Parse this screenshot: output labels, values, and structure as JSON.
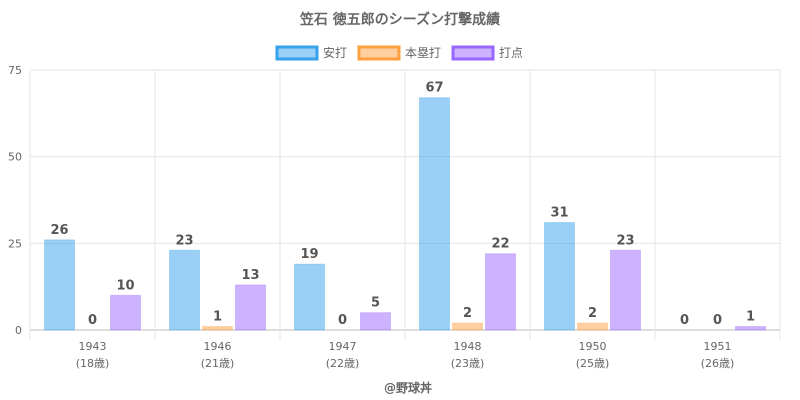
{
  "chart_data": {
    "type": "bar",
    "title": "笠石 徳五郎のシーズン打撃成績",
    "categories": [
      "1943",
      "1946",
      "1947",
      "1948",
      "1950",
      "1951"
    ],
    "category_sublabels": [
      "(18歳)",
      "(21歳)",
      "(22歳)",
      "(23歳)",
      "(25歳)",
      "(26歳)"
    ],
    "series": [
      {
        "name": "安打",
        "values": [
          26,
          23,
          19,
          67,
          31,
          0
        ],
        "color": "#36a2eb"
      },
      {
        "name": "本塁打",
        "values": [
          0,
          1,
          0,
          2,
          2,
          0
        ],
        "color": "#ff9f40"
      },
      {
        "name": "打点",
        "values": [
          10,
          13,
          5,
          22,
          23,
          1
        ],
        "color": "#9966ff"
      }
    ],
    "ylim": [
      0,
      75
    ],
    "yticks": [
      0,
      25,
      50,
      75
    ],
    "grid": true,
    "legend_position": "top",
    "credit": "@野球丼"
  }
}
